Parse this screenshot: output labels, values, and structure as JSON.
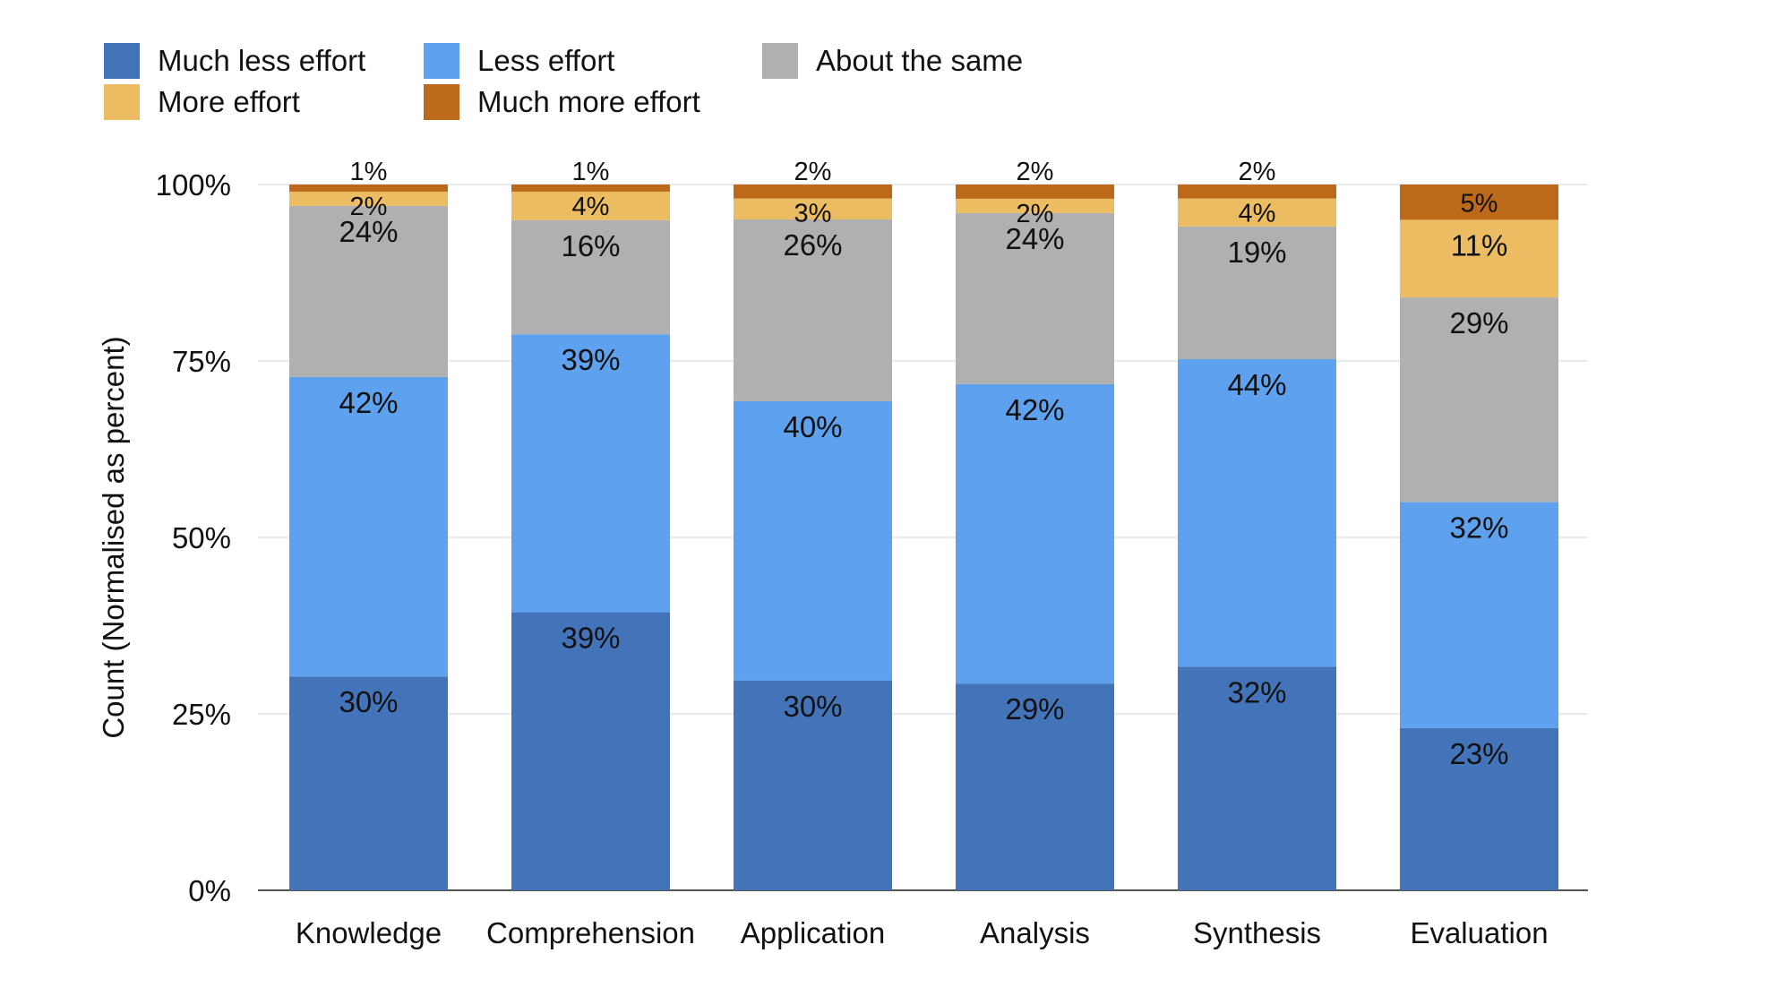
{
  "chart_data": {
    "type": "bar",
    "stacked": true,
    "normalized": true,
    "categories": [
      "Knowledge",
      "Comprehension",
      "Application",
      "Analysis",
      "Synthesis",
      "Evaluation"
    ],
    "series": [
      {
        "name": "Much less effort",
        "color": "#4374BA",
        "values": [
          30,
          39,
          30,
          29,
          32,
          23
        ]
      },
      {
        "name": "Less effort",
        "color": "#5EA1EE",
        "values": [
          42,
          39,
          40,
          42,
          44,
          32
        ]
      },
      {
        "name": "About the same",
        "color": "#B0B0B0",
        "values": [
          24,
          16,
          26,
          24,
          19,
          29
        ]
      },
      {
        "name": "More effort",
        "color": "#ECBC62",
        "values": [
          2,
          4,
          3,
          2,
          4,
          11
        ]
      },
      {
        "name": "Much more effort",
        "color": "#BC6A1A",
        "values": [
          1,
          1,
          2,
          2,
          2,
          5
        ]
      }
    ],
    "ylabel": "Count (Normalised as percent)",
    "xlabel": "",
    "ylim": [
      0,
      100
    ],
    "yticks": [
      "0%",
      "25%",
      "50%",
      "75%",
      "100%"
    ],
    "grid": true,
    "legend_position": "top-left"
  }
}
